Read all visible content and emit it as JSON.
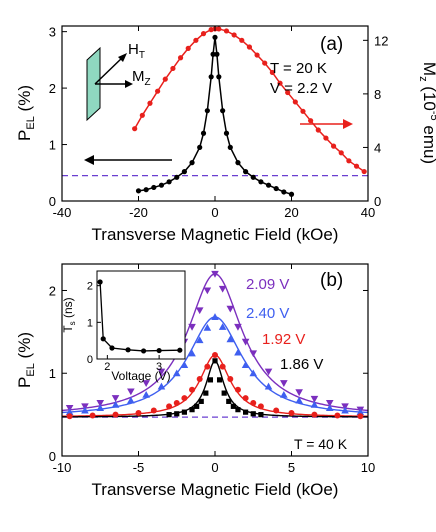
{
  "colors": {
    "red": "#e8201c",
    "black": "#000000",
    "purple": "#7b2fbe",
    "blue": "#3f5ff0",
    "dash": "#6a3fd0",
    "sample": "#8fd8c0"
  },
  "chart_data": [
    {
      "type": "scatter",
      "panel_label": "(a)",
      "xlabel": "Transverse Magnetic Field (kOe)",
      "ylabel_left": "P",
      "ylabel_left_sub": "EL",
      "ylabel_left_unit": " (%)",
      "ylabel_right": "M",
      "ylabel_right_sub": "z",
      "ylabel_right_unit_a": " (10",
      "ylabel_right_unit_sup": "-5",
      "ylabel_right_unit_b": " emu)",
      "xlim": [
        -40,
        40
      ],
      "ylim_left": [
        0,
        3.1
      ],
      "ylim_right": [
        0,
        13.07
      ],
      "xticks": [
        -40,
        -20,
        0,
        20,
        40
      ],
      "yticks_left": [
        0,
        1,
        2,
        3
      ],
      "yticks_right": [
        0,
        4,
        8,
        12
      ],
      "annotations": {
        "temperature": "T = 20 K",
        "voltage": "V = 2.2 V",
        "field_label": "H",
        "field_label_sub": "T",
        "magnetization_label": "M",
        "magnetization_label_sub": "Z"
      },
      "baseline_left": 0.45,
      "series": [
        {
          "axis": "right",
          "color": "red",
          "x": [
            -21,
            -19,
            -17,
            -15,
            -13,
            -11,
            -9,
            -7,
            -5,
            -3,
            -1,
            0,
            1,
            3,
            5,
            7,
            9,
            11,
            13,
            15,
            17,
            19,
            21,
            23,
            25,
            27,
            29,
            31,
            33,
            35,
            37,
            39
          ],
          "y": [
            5.4,
            6.4,
            7.3,
            8.2,
            9.1,
            9.9,
            10.7,
            11.4,
            12.0,
            12.5,
            12.8,
            12.85,
            12.85,
            12.7,
            12.4,
            12.0,
            11.5,
            10.9,
            10.3,
            9.6,
            8.8,
            8.1,
            7.4,
            6.7,
            6.0,
            5.3,
            4.7,
            4.1,
            3.6,
            3.0,
            2.6,
            2.2
          ]
        },
        {
          "axis": "left",
          "color": "black",
          "x": [
            -20,
            -18,
            -16,
            -14,
            -12,
            -10,
            -8,
            -6,
            -4,
            -3,
            -2,
            -1,
            -0.5,
            0,
            0.5,
            1,
            2,
            3,
            4,
            6,
            8,
            10,
            12,
            14,
            16,
            18,
            20
          ],
          "y": [
            0.18,
            0.2,
            0.24,
            0.28,
            0.34,
            0.42,
            0.52,
            0.68,
            0.95,
            1.2,
            1.6,
            2.2,
            2.6,
            2.9,
            2.6,
            2.2,
            1.6,
            1.2,
            0.95,
            0.68,
            0.52,
            0.42,
            0.34,
            0.28,
            0.22,
            0.16,
            0.12
          ]
        }
      ]
    },
    {
      "type": "scatter",
      "panel_label": "(b)",
      "xlabel": "Transverse Magnetic Field (kOe)",
      "ylabel": "P",
      "ylabel_sub": "EL",
      "ylabel_unit": " (%)",
      "xlim": [
        -10,
        10
      ],
      "ylim": [
        0,
        2.32
      ],
      "xticks": [
        -10,
        -5,
        0,
        5,
        10
      ],
      "yticks": [
        0,
        1,
        2
      ],
      "baseline": 0.47,
      "annotation": "T = 40 K",
      "series": [
        {
          "name": "2.09 V",
          "color": "purple",
          "marker": "triangle-down",
          "peak": 2.2,
          "x": [
            -9.5,
            -8.5,
            -7.5,
            -6.5,
            -5.5,
            -4.5,
            -3.5,
            -2.5,
            -2,
            -1.5,
            -1,
            -0.5,
            0,
            0.5,
            1,
            1.5,
            2,
            2.5,
            3.5,
            4.5,
            5.5,
            6.5,
            7.5,
            8.5,
            9.5
          ],
          "y": [
            0.58,
            0.6,
            0.64,
            0.7,
            0.78,
            0.88,
            1.02,
            1.24,
            1.38,
            1.56,
            1.76,
            2.0,
            2.2,
            2.02,
            1.78,
            1.56,
            1.38,
            1.24,
            1.02,
            0.88,
            0.77,
            0.69,
            0.64,
            0.6,
            0.56
          ]
        },
        {
          "name": "2.40 V",
          "color": "blue",
          "marker": "triangle-up",
          "peak": 1.68,
          "x": [
            -9.5,
            -8.5,
            -7.5,
            -6.5,
            -5.5,
            -4.5,
            -3.5,
            -2.5,
            -2,
            -1.5,
            -1,
            -0.5,
            0,
            0.5,
            1,
            1.5,
            2,
            2.5,
            3.5,
            4.5,
            5.5,
            6.5,
            7.5,
            8.5,
            9.5
          ],
          "y": [
            0.53,
            0.55,
            0.58,
            0.62,
            0.67,
            0.74,
            0.84,
            1.0,
            1.1,
            1.24,
            1.4,
            1.55,
            1.68,
            1.56,
            1.41,
            1.25,
            1.1,
            1.0,
            0.84,
            0.74,
            0.67,
            0.62,
            0.58,
            0.55,
            0.53
          ]
        },
        {
          "name": "1.92 V",
          "color": "red",
          "marker": "circle",
          "peak": 1.22,
          "x": [
            -9.5,
            -8,
            -6.5,
            -5,
            -4,
            -3,
            -2.5,
            -2,
            -1.5,
            -1,
            -0.5,
            0,
            0.5,
            1,
            1.5,
            2,
            2.5,
            3,
            4,
            5,
            6.5,
            8,
            9.5
          ],
          "y": [
            0.48,
            0.49,
            0.5,
            0.52,
            0.55,
            0.6,
            0.64,
            0.7,
            0.8,
            0.93,
            1.08,
            1.22,
            1.08,
            0.93,
            0.8,
            0.7,
            0.64,
            0.6,
            0.55,
            0.52,
            0.5,
            0.49,
            0.48
          ]
        },
        {
          "name": "1.86 V",
          "color": "black",
          "marker": "square",
          "peak": 1.15,
          "x": [
            -3,
            -2.5,
            -2,
            -1.5,
            -1.2,
            -0.9,
            -0.6,
            -0.3,
            0,
            0.3,
            0.6,
            0.9,
            1.2,
            1.5,
            2,
            2.5,
            3
          ],
          "y": [
            0.5,
            0.51,
            0.53,
            0.56,
            0.6,
            0.66,
            0.76,
            0.92,
            1.15,
            0.92,
            0.76,
            0.66,
            0.6,
            0.56,
            0.53,
            0.51,
            0.5
          ]
        }
      ],
      "inset": {
        "type": "line",
        "xlabel": "Voltage (V)",
        "ylabel": "T",
        "ylabel_sub": "s",
        "ylabel_unit": " (ns)",
        "xlim": [
          1.8,
          3.5
        ],
        "ylim": [
          0,
          2.4
        ],
        "xticks": [
          2,
          3
        ],
        "yticks": [
          0,
          1,
          2
        ],
        "x": [
          1.86,
          1.92,
          2.09,
          2.4,
          2.7,
          3.0,
          3.4
        ],
        "y": [
          2.1,
          0.55,
          0.3,
          0.25,
          0.22,
          0.23,
          0.24
        ]
      }
    }
  ]
}
